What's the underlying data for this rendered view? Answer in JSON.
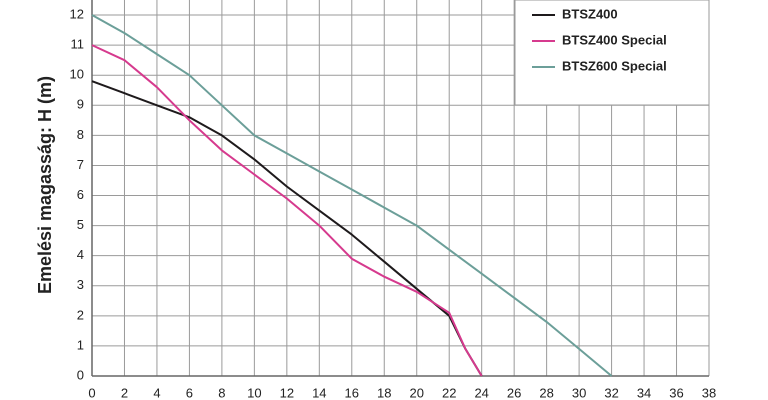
{
  "chart_data": {
    "type": "line",
    "ylabel": "Emelési magasság: H (m)",
    "xlim": [
      0,
      38
    ],
    "ylim": [
      0,
      12.5
    ],
    "xticks": [
      0,
      2,
      4,
      6,
      8,
      10,
      12,
      14,
      16,
      18,
      20,
      22,
      24,
      26,
      28,
      30,
      32,
      34,
      36,
      38
    ],
    "yticks": [
      0,
      1,
      2,
      3,
      4,
      5,
      6,
      7,
      8,
      9,
      10,
      11,
      12
    ],
    "grid": true,
    "legend": "upper right",
    "series": [
      {
        "name": "BTSZ400",
        "color": "#1e1a1c",
        "x": [
          0,
          2,
          4,
          6,
          8,
          10,
          12,
          14,
          16,
          18,
          20,
          22,
          23,
          24
        ],
        "values": [
          9.8,
          9.4,
          9.0,
          8.6,
          8.0,
          7.2,
          6.3,
          5.5,
          4.7,
          3.8,
          2.9,
          2.0,
          0.9,
          0
        ]
      },
      {
        "name": "BTSZ400 Special",
        "color": "#d63a8e",
        "x": [
          0,
          2,
          4,
          6,
          8,
          10,
          12,
          14,
          16,
          18,
          20,
          22,
          23,
          24
        ],
        "values": [
          11.0,
          10.5,
          9.6,
          8.5,
          7.5,
          6.7,
          5.9,
          5.0,
          3.9,
          3.3,
          2.8,
          2.1,
          0.9,
          0
        ]
      },
      {
        "name": "BTSZ600 Special",
        "color": "#6c9f99",
        "x": [
          0,
          2,
          4,
          6,
          8,
          10,
          12,
          14,
          16,
          18,
          20,
          22,
          24,
          26,
          28,
          30,
          32
        ],
        "values": [
          12.0,
          11.4,
          10.7,
          10.0,
          9.0,
          8.0,
          7.4,
          6.8,
          6.2,
          5.6,
          5.0,
          4.2,
          3.4,
          2.6,
          1.8,
          0.9,
          0
        ]
      }
    ]
  }
}
